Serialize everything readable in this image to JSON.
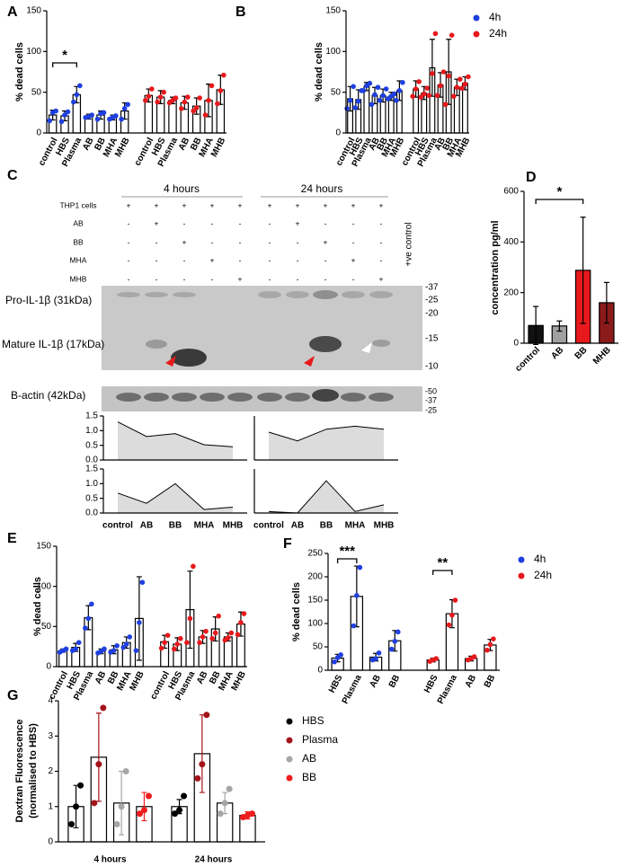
{
  "chart_data": [
    {
      "type": "bar",
      "label": "A",
      "ylabel": "% dead cells",
      "ylim": [
        0,
        150
      ],
      "yticks": [
        0,
        50,
        100,
        150
      ],
      "categories": [
        "control",
        "HBS",
        "Plasma",
        "AB",
        "BB",
        "MHA",
        "MHB",
        "control",
        "HBS",
        "Plasma",
        "AB",
        "BB",
        "MHA",
        "MHB"
      ],
      "series": [
        {
          "color": "#1f3fe0",
          "values": [
            22,
            21,
            47,
            20,
            22,
            19,
            27,
            null,
            null,
            null,
            null,
            null,
            null,
            null
          ],
          "errors": [
            6,
            6,
            10,
            3,
            5,
            3,
            10,
            null,
            null,
            null,
            null,
            null,
            null,
            null
          ],
          "points": [
            [
              15,
              25,
              27
            ],
            [
              14,
              22,
              26
            ],
            [
              38,
              47,
              58
            ],
            [
              19,
              20,
              22
            ],
            [
              17,
              24,
              25
            ],
            [
              17,
              19,
              21
            ],
            [
              17,
              30,
              35
            ],
            null,
            null,
            null,
            null,
            null,
            null,
            null
          ]
        },
        {
          "color": "#e8191c",
          "values": [
            null,
            null,
            null,
            null,
            null,
            null,
            null,
            46,
            44,
            40,
            37,
            33,
            40,
            53
          ],
          "errors": [
            null,
            null,
            null,
            null,
            null,
            null,
            null,
            8,
            8,
            4,
            8,
            10,
            20,
            18
          ],
          "points": [
            null,
            null,
            null,
            null,
            null,
            null,
            null,
            [
              40,
              45,
              54
            ],
            [
              38,
              44,
              50
            ],
            [
              37,
              40,
              43
            ],
            [
              30,
              38,
              44
            ],
            [
              27,
              31,
              43
            ],
            [
              22,
              40,
              58
            ],
            [
              36,
              52,
              71
            ]
          ]
        }
      ],
      "annotations": [
        "*"
      ]
    },
    {
      "type": "bar",
      "label": "B",
      "ylabel": "% dead cells",
      "ylim": [
        0,
        150
      ],
      "yticks": [
        0,
        50,
        100,
        150
      ],
      "categories": [
        "control",
        "HBS",
        "Plasma",
        "AB",
        "BB",
        "MHA",
        "MHB",
        "control",
        "HBS",
        "Plasma",
        "AB",
        "BB",
        "MHA",
        "MHB"
      ],
      "series": [
        {
          "name": "4h",
          "color": "#1f3fe0",
          "values": [
            42,
            41,
            57,
            46,
            46,
            45,
            52,
            null,
            null,
            null,
            null,
            null,
            null,
            null
          ],
          "errors": [
            15,
            12,
            5,
            10,
            8,
            5,
            12,
            null,
            null,
            null,
            null,
            null,
            null,
            null
          ],
          "points": [
            [
              30,
              40,
              57
            ],
            [
              31,
              39,
              52
            ],
            [
              52,
              58,
              61
            ],
            [
              35,
              47,
              56
            ],
            [
              40,
              46,
              54
            ],
            [
              42,
              45,
              48
            ],
            [
              40,
              52,
              62
            ],
            null,
            null,
            null,
            null,
            null,
            null,
            null
          ]
        },
        {
          "name": "24h",
          "color": "#e8191c",
          "values": [
            null,
            null,
            null,
            null,
            null,
            null,
            null,
            54,
            49,
            80,
            59,
            75,
            56,
            61
          ],
          "errors": [
            null,
            null,
            null,
            null,
            null,
            null,
            null,
            10,
            8,
            35,
            15,
            40,
            10,
            8
          ],
          "points": [
            null,
            null,
            null,
            null,
            null,
            null,
            null,
            [
              45,
              54,
              63
            ],
            [
              44,
              48,
              55
            ],
            [
              46,
              73,
              122
            ],
            [
              46,
              58,
              75
            ],
            [
              35,
              70,
              120
            ],
            [
              45,
              56,
              66
            ],
            [
              55,
              60,
              69
            ]
          ]
        }
      ]
    },
    {
      "type": "area",
      "ylim": [
        0,
        1.5
      ],
      "yticks": [
        {
          "value": 0,
          "label": "0.0"
        },
        0.5,
        {
          "value": 1,
          "label": "1.0"
        },
        1.5
      ],
      "values": [
        1.3,
        0.8,
        0.9,
        0.52,
        0.45
      ]
    },
    {
      "type": "area",
      "ylim": [
        0,
        1.5
      ],
      "values": [
        0.95,
        0.65,
        1.05,
        1.15,
        1.05
      ]
    },
    {
      "type": "area",
      "ylim": [
        0,
        1.5
      ],
      "yticks": [
        {
          "value": 0,
          "label": "0.0"
        },
        0.5,
        {
          "value": 1,
          "label": "1.0"
        },
        1.5
      ],
      "categories": [
        "control",
        "AB",
        "BB",
        "MHA",
        "MHB"
      ],
      "values": [
        0.68,
        0.33,
        1.0,
        0.12,
        0.2
      ]
    },
    {
      "type": "area",
      "ylim": [
        0,
        1.5
      ],
      "categories": [
        "control",
        "AB",
        "BB",
        "MHA",
        "MHB"
      ],
      "values": [
        0.05,
        0.0,
        1.1,
        0.05,
        0.28
      ]
    },
    {
      "type": "bar",
      "label": "D",
      "ylabel": "concentration pg/ml",
      "ylim": [
        0,
        600
      ],
      "yticks": [
        0,
        200,
        400,
        600
      ],
      "categories": [
        "control",
        "AB",
        "BB",
        "MHB"
      ],
      "values": [
        70,
        68,
        288,
        160
      ],
      "errors": [
        75,
        20,
        210,
        80
      ],
      "colors": [
        "#111111",
        "#a0a0a0",
        "#e8191c",
        "#8b1a1a"
      ],
      "annotations": [
        "*"
      ]
    },
    {
      "type": "bar",
      "label": "E",
      "ylabel": "% dead cells",
      "ylim": [
        0,
        150
      ],
      "yticks": [
        0,
        50,
        100,
        150
      ],
      "categories": [
        "control",
        "HBS",
        "Plasma",
        "AB",
        "BB",
        "MHA",
        "MHB",
        "control",
        "HBS",
        "Plasma",
        "AB",
        "BB",
        "MHA",
        "MHB"
      ],
      "series": [
        {
          "color": "#1f3fe0",
          "values": [
            20,
            24,
            61,
            19,
            21,
            30,
            60,
            null,
            null,
            null,
            null,
            null,
            null,
            null
          ],
          "errors": [
            2,
            5,
            15,
            3,
            5,
            7,
            52,
            null,
            null,
            null,
            null,
            null,
            null,
            null
          ],
          "points": [
            [
              18,
              20,
              22
            ],
            [
              20,
              22,
              30
            ],
            [
              48,
              60,
              78
            ],
            [
              17,
              19,
              22
            ],
            [
              18,
              20,
              26
            ],
            [
              24,
              28,
              37
            ],
            [
              20,
              55,
              105
            ],
            null,
            null,
            null,
            null,
            null,
            null,
            null
          ]
        },
        {
          "color": "#e8191c",
          "values": [
            null,
            null,
            null,
            null,
            null,
            null,
            null,
            31,
            28,
            71,
            37,
            47,
            37,
            53
          ],
          "errors": [
            null,
            null,
            null,
            null,
            null,
            null,
            null,
            8,
            8,
            48,
            8,
            15,
            5,
            15
          ],
          "points": [
            null,
            null,
            null,
            null,
            null,
            null,
            null,
            [
              23,
              30,
              39
            ],
            [
              22,
              28,
              35
            ],
            [
              30,
              60,
              125
            ],
            [
              30,
              37,
              44
            ],
            [
              35,
              42,
              63
            ],
            [
              33,
              36,
              42
            ],
            [
              40,
              55,
              66
            ]
          ]
        }
      ]
    },
    {
      "type": "bar",
      "label": "F",
      "ylabel": "% dead cells",
      "ylim": [
        0,
        250
      ],
      "yticks": [
        0,
        50,
        100,
        150,
        200,
        250
      ],
      "categories": [
        "HBS",
        "Plasma",
        "AB",
        "BB",
        "HBS",
        "Plasma",
        "AB",
        "BB"
      ],
      "series": [
        {
          "name": "4h",
          "color": "#1f3fe0",
          "values": [
            26,
            158,
            28,
            63,
            null,
            null,
            null,
            null
          ],
          "errors": [
            8,
            65,
            8,
            22,
            null,
            null,
            null,
            null
          ],
          "points": [
            [
              18,
              27,
              33
            ],
            [
              95,
              160,
              220
            ],
            [
              22,
              25,
              37
            ],
            [
              45,
              62,
              82
            ],
            null,
            null,
            null,
            null
          ]
        },
        {
          "name": "24h",
          "color": "#e8191c",
          "values": [
            null,
            null,
            null,
            null,
            22,
            121,
            25,
            54
          ],
          "errors": [
            null,
            null,
            null,
            null,
            4,
            30,
            5,
            12
          ],
          "points": [
            null,
            null,
            null,
            null,
            [
              19,
              22,
              25
            ],
            [
              97,
              118,
              150
            ],
            [
              22,
              25,
              29
            ],
            [
              43,
              55,
              67
            ]
          ]
        }
      ],
      "annotations": [
        "***",
        "**"
      ]
    },
    {
      "type": "bar",
      "label": "G",
      "ylabel": [
        "Dextran Fluorescence",
        "(normalised to HBS)"
      ],
      "ylim": [
        0,
        4
      ],
      "yticks": [
        0,
        1,
        2,
        3,
        4
      ],
      "categories": [
        "4 hours",
        "24 hours"
      ],
      "series": [
        {
          "name": "HBS",
          "color": "#000000",
          "values": [
            1.0,
            1.0
          ],
          "errors": [
            0.6,
            0.2
          ],
          "points": [
            [
              0.5,
              1.0,
              1.6
            ],
            [
              0.8,
              0.9,
              1.3
            ]
          ]
        },
        {
          "name": "Plasma",
          "color": "#a3141a",
          "values": [
            2.4,
            2.5
          ],
          "errors": [
            1.25,
            1.1
          ],
          "points": [
            [
              1.1,
              2.2,
              3.8
            ],
            [
              1.8,
              2.2,
              3.6
            ]
          ]
        },
        {
          "name": "AB",
          "color": "#a6a6a6",
          "values": [
            1.1,
            1.1
          ],
          "errors": [
            0.9,
            0.3
          ],
          "points": [
            [
              0.5,
              1.0,
              2.0
            ],
            [
              0.8,
              1.1,
              1.5
            ]
          ]
        },
        {
          "name": "BB",
          "color": "#ee1c1c",
          "values": [
            1.0,
            0.75
          ],
          "errors": [
            0.4,
            0.1
          ],
          "points": [
            [
              0.8,
              0.9,
              1.3
            ],
            [
              0.7,
              0.75,
              0.8
            ]
          ]
        }
      ]
    }
  ],
  "blot": {
    "label": "C",
    "headers": [
      "4 hours",
      "24 hours"
    ],
    "rows": [
      {
        "label": "THP1 cells",
        "signs": [
          "+",
          "+",
          "+",
          "+",
          "+",
          "+",
          "+",
          "+",
          "+",
          "+"
        ]
      },
      {
        "label": "AB",
        "signs": [
          "-",
          "+",
          "-",
          "-",
          "-",
          "-",
          "+",
          "-",
          "-",
          "-"
        ]
      },
      {
        "label": "BB",
        "signs": [
          "-",
          "-",
          "+",
          "-",
          "-",
          "-",
          "-",
          "+",
          "-",
          "-"
        ]
      },
      {
        "label": "MHA",
        "signs": [
          "-",
          "-",
          "-",
          "+",
          "-",
          "-",
          "-",
          "-",
          "+",
          "-"
        ]
      },
      {
        "label": "MHB",
        "signs": [
          "-",
          "-",
          "-",
          "-",
          "+",
          "-",
          "-",
          "-",
          "-",
          "+"
        ]
      }
    ],
    "control_label": "+ve control",
    "bands": [
      "Pro-IL-1β (31kDa)",
      "Mature IL-1β (17kDa)",
      "B-actin (42kDa)"
    ],
    "markers": [
      "-37",
      "-25",
      "-20",
      "-15",
      "-10"
    ],
    "actin_markers": [
      "-50",
      "-37",
      "-25"
    ]
  }
}
